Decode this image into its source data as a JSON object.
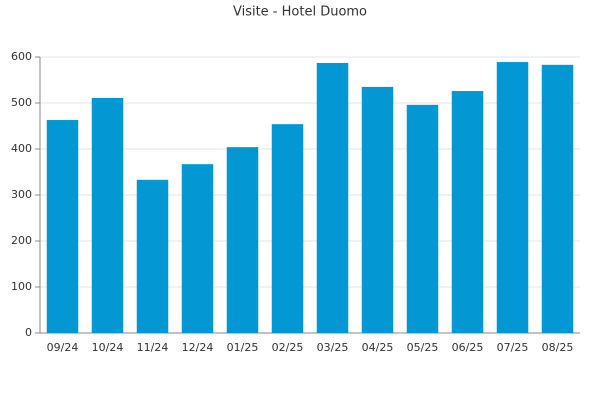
{
  "chart_data": {
    "type": "bar",
    "title": "Visite - Hotel Duomo",
    "categories": [
      "09/24",
      "10/24",
      "11/24",
      "12/24",
      "01/25",
      "02/25",
      "03/25",
      "04/25",
      "05/25",
      "06/25",
      "07/25",
      "08/25"
    ],
    "values": [
      463,
      511,
      333,
      367,
      404,
      454,
      587,
      535,
      496,
      526,
      589,
      583
    ],
    "color": "#0398d4",
    "ylim": [
      0,
      600
    ],
    "yticks": [
      0,
      100,
      200,
      300,
      400,
      500,
      600
    ],
    "grid": true
  }
}
